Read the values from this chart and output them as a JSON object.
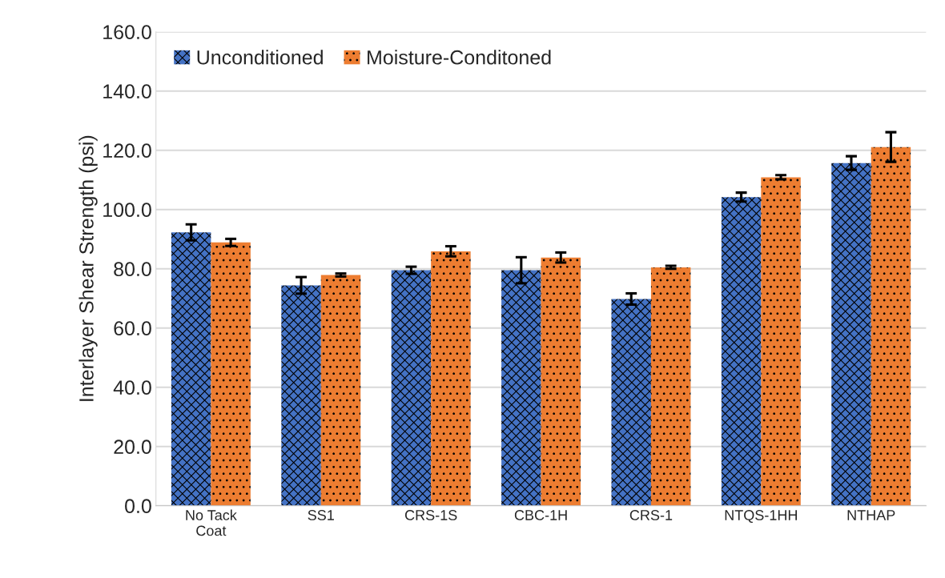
{
  "chart_data": {
    "type": "bar",
    "ylabel": "Interlayer Shear Strength (psi)",
    "categories": [
      "No Tack\nCoat",
      "SS1",
      "CRS-1S",
      "CBC-1H",
      "CRS-1",
      "NTQS-1HH",
      "NTHAP"
    ],
    "series": [
      {
        "name": "Unconditioned",
        "color": "#4472c4",
        "values": [
          92.3,
          74.4,
          79.5,
          79.5,
          69.8,
          104.2,
          115.7
        ],
        "errors": [
          2.7,
          2.8,
          1.2,
          4.4,
          1.9,
          1.5,
          2.3
        ]
      },
      {
        "name": "Moisture-Conditoned",
        "color": "#ed7d31",
        "values": [
          88.9,
          77.9,
          85.9,
          83.8,
          80.5,
          110.9,
          121.1
        ],
        "errors": [
          1.2,
          0.5,
          1.7,
          1.7,
          0.5,
          0.7,
          5.0
        ]
      }
    ],
    "ylim": [
      0,
      160
    ],
    "yticks": [
      {
        "value": 0,
        "label": "0.0"
      },
      {
        "value": 20,
        "label": "20.0"
      },
      {
        "value": 40,
        "label": "40.0"
      },
      {
        "value": 60,
        "label": "60.0"
      },
      {
        "value": 80,
        "label": "80.0"
      },
      {
        "value": 100,
        "label": "100.0"
      },
      {
        "value": 120,
        "label": "120.0"
      },
      {
        "value": 140,
        "label": "140.0"
      },
      {
        "value": 160,
        "label": "160.0"
      }
    ],
    "grid": "y",
    "legend": "top left"
  }
}
